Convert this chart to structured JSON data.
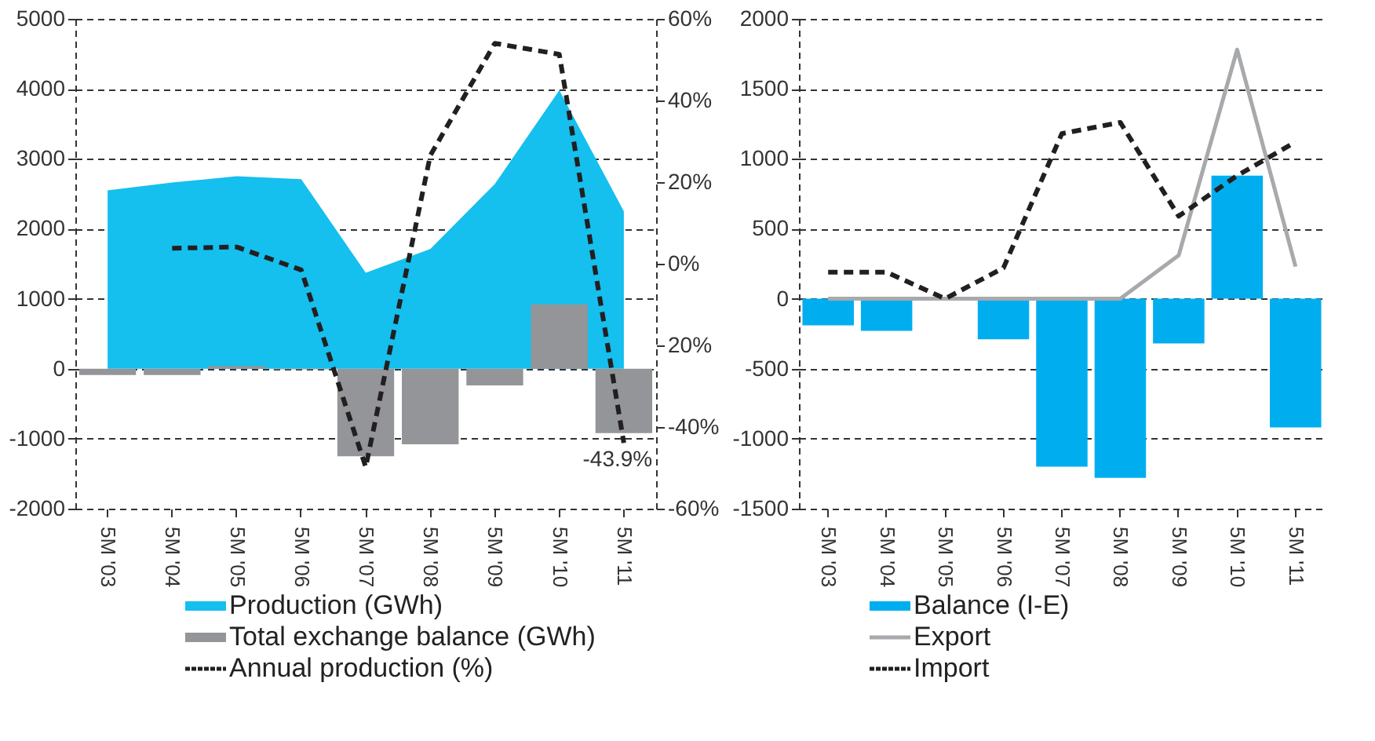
{
  "chart_data": [
    {
      "type": "bar",
      "categories": [
        "5M '03",
        "5M '04",
        "5M '05",
        "5M '06",
        "5M '07",
        "5M '08",
        "5M '09",
        "5M '10",
        "5M '11"
      ],
      "series": [
        {
          "name": "Production (GWh)",
          "type": "area",
          "color": "#15bfee",
          "values": [
            2550,
            2660,
            2750,
            2710,
            1370,
            1710,
            2640,
            3980,
            2250
          ]
        },
        {
          "name": "Total exchange balance (GWh)",
          "color": "#939598",
          "values": [
            -90,
            -90,
            40,
            -10,
            -1250,
            -1080,
            -240,
            920,
            -920
          ]
        },
        {
          "name": "Annual production (%)",
          "type": "line",
          "axis": "y2",
          "line_style": "dashed",
          "color": "#231f20",
          "values": [
            null,
            3.8,
            4.1,
            -1.5,
            -49.8,
            26.5,
            54,
            51.3,
            -43.9
          ]
        }
      ],
      "ylim": [
        -2000,
        5000
      ],
      "yticks": [
        -2000,
        -1000,
        0,
        1000,
        2000,
        3000,
        4000,
        5000
      ],
      "y2lim": [
        -60,
        60
      ],
      "y2ticks": [
        {
          "value": -60,
          "label": "-60%"
        },
        {
          "value": -40,
          "label": "-40%"
        },
        {
          "value": -20,
          "label": "20%"
        },
        {
          "value": 0,
          "label": "0%"
        },
        {
          "value": 20,
          "label": "20%"
        },
        {
          "value": 40,
          "label": "40%"
        },
        {
          "value": 60,
          "label": "60%"
        }
      ],
      "annotations": [
        "-43.9%"
      ],
      "grid": "y",
      "legend": "bottom"
    },
    {
      "type": "bar",
      "categories": [
        "5M '03",
        "5M '04",
        "5M '05",
        "5M '06",
        "5M '07",
        "5M '08",
        "5M '09",
        "5M '10",
        "5M '11"
      ],
      "series": [
        {
          "name": "Balance  (I-E)",
          "color": "#00aeef",
          "values": [
            -190,
            -230,
            0,
            -290,
            -1200,
            -1280,
            -320,
            880,
            -920
          ]
        },
        {
          "name": "Export",
          "type": "line",
          "line_style": "solid",
          "color": "#a7a9ac",
          "values": [
            0,
            0,
            0,
            0,
            0,
            0,
            310,
            1780,
            230
          ]
        },
        {
          "name": "Import",
          "type": "line",
          "line_style": "dashed",
          "color": "#231f20",
          "values": [
            190,
            190,
            0,
            220,
            1180,
            1260,
            590,
            880,
            1120
          ]
        }
      ],
      "ylim": [
        -1500,
        2000
      ],
      "yticks": [
        -1500,
        -1000,
        -500,
        0,
        500,
        1000,
        1500,
        2000
      ],
      "grid": "y",
      "legend": "bottom"
    }
  ]
}
